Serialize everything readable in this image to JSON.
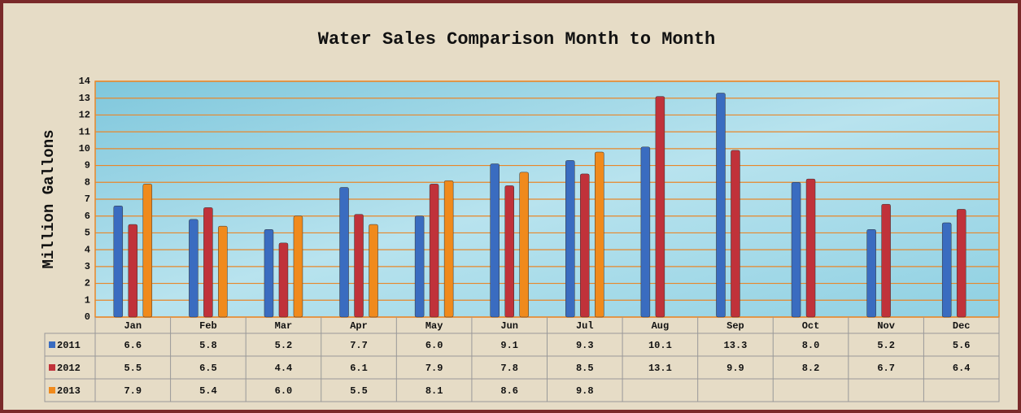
{
  "chart_data": {
    "type": "bar",
    "title": "Water Sales Comparison Month to Month",
    "y_label": "Million Gallons",
    "categories": [
      "Jan",
      "Feb",
      "Mar",
      "Apr",
      "May",
      "Jun",
      "Jul",
      "Aug",
      "Sep",
      "Oct",
      "Nov",
      "Dec"
    ],
    "series": [
      {
        "name": "2011",
        "color": "#3a6cc0",
        "values": [
          6.6,
          5.8,
          5.2,
          7.7,
          6.0,
          9.1,
          9.3,
          10.1,
          13.3,
          8.0,
          5.2,
          5.6
        ],
        "value_labels": [
          "6.6",
          "5.8",
          "5.2",
          "7.7",
          "6.0",
          "9.1",
          "9.3",
          "10.1",
          "13.3",
          "8.0",
          "5.2",
          "5.6"
        ]
      },
      {
        "name": "2012",
        "color": "#c0323a",
        "values": [
          5.5,
          6.5,
          4.4,
          6.1,
          7.9,
          7.8,
          8.5,
          13.1,
          9.9,
          8.2,
          6.7,
          6.4
        ],
        "value_labels": [
          "5.5",
          "6.5",
          "4.4",
          "6.1",
          "7.9",
          "7.8",
          "8.5",
          "13.1",
          "9.9",
          "8.2",
          "6.7",
          "6.4"
        ]
      },
      {
        "name": "2013",
        "color": "#f08a1c",
        "values": [
          7.9,
          5.4,
          6.0,
          5.5,
          8.1,
          8.6,
          9.8,
          null,
          null,
          null,
          null,
          null
        ],
        "value_labels": [
          "7.9",
          "5.4",
          "6.0",
          "5.5",
          "8.1",
          "8.6",
          "9.8",
          null,
          null,
          null,
          null,
          null
        ]
      }
    ],
    "ylim": [
      0,
      14
    ],
    "yticks": [
      0,
      1,
      2,
      3,
      4,
      5,
      6,
      7,
      8,
      9,
      10,
      11,
      12,
      13,
      14
    ],
    "grid": true
  }
}
